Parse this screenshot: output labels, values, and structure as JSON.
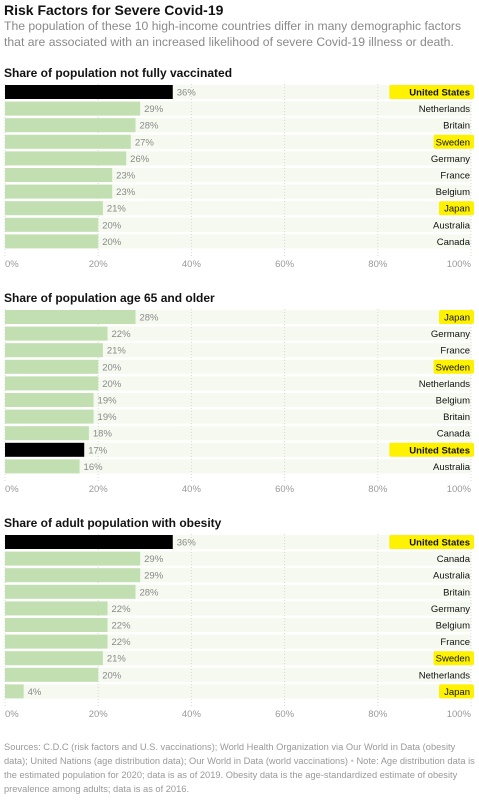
{
  "header": {
    "title": "Risk Factors for Severe Covid-19",
    "subtitle": "The population of these 10 high-income countries differ in many demographic factors that are associated with an increased likelihood of severe Covid-19 illness or death."
  },
  "colors": {
    "bar_default": "#c1dfb1",
    "bar_us": "#000000",
    "track": "#f5f9ef",
    "highlight": "#fff200",
    "text": "#121212",
    "muted": "#8a8a8a"
  },
  "chart_data": [
    {
      "type": "bar",
      "orientation": "horizontal",
      "title": "Share of population not fully vaccinated",
      "categories": [
        "United States",
        "Netherlands",
        "Britain",
        "Sweden",
        "Germany",
        "France",
        "Belgium",
        "Japan",
        "Australia",
        "Canada"
      ],
      "values": [
        36,
        29,
        28,
        27,
        26,
        23,
        23,
        21,
        20,
        20
      ],
      "value_labels": [
        "36%",
        "29%",
        "28%",
        "27%",
        "26%",
        "23%",
        "23%",
        "21%",
        "20%",
        "20%"
      ],
      "highlighted": [
        "United States",
        "Sweden",
        "Japan"
      ],
      "emphasized": "United States",
      "xlim": [
        0,
        100
      ],
      "xticks": [
        "0%",
        "20%",
        "40%",
        "60%",
        "80%",
        "100%"
      ]
    },
    {
      "type": "bar",
      "orientation": "horizontal",
      "title": "Share of population age 65 and older",
      "categories": [
        "Japan",
        "Germany",
        "France",
        "Sweden",
        "Netherlands",
        "Belgium",
        "Britain",
        "Canada",
        "United States",
        "Australia"
      ],
      "values": [
        28,
        22,
        21,
        20,
        20,
        19,
        19,
        18,
        17,
        16
      ],
      "value_labels": [
        "28%",
        "22%",
        "21%",
        "20%",
        "20%",
        "19%",
        "19%",
        "18%",
        "17%",
        "16%"
      ],
      "highlighted": [
        "Japan",
        "Sweden",
        "United States"
      ],
      "emphasized": "United States",
      "xlim": [
        0,
        100
      ],
      "xticks": [
        "0%",
        "20%",
        "40%",
        "60%",
        "80%",
        "100%"
      ]
    },
    {
      "type": "bar",
      "orientation": "horizontal",
      "title": "Share of adult population with obesity",
      "categories": [
        "United States",
        "Canada",
        "Australia",
        "Britain",
        "Germany",
        "Belgium",
        "France",
        "Sweden",
        "Netherlands",
        "Japan"
      ],
      "values": [
        36,
        29,
        29,
        28,
        22,
        22,
        22,
        21,
        20,
        4
      ],
      "value_labels": [
        "36%",
        "29%",
        "29%",
        "28%",
        "22%",
        "22%",
        "22%",
        "21%",
        "20%",
        "4%"
      ],
      "highlighted": [
        "United States",
        "Sweden",
        "Japan"
      ],
      "emphasized": "United States",
      "xlim": [
        0,
        100
      ],
      "xticks": [
        "0%",
        "20%",
        "40%",
        "60%",
        "80%",
        "100%"
      ]
    }
  ],
  "notes": {
    "sources": "Sources: C.D.C (risk factors and U.S. vaccinations); World Health Organization via Our World in Data (obesity data); United Nations (age distribution data); Our World in Data (world vaccinations)",
    "separator": "•",
    "note": "Note: Age distribution data is the estimated population for 2020; data is as of 2019. Obesity data is the age-standardized estimate of obesity prevalence among adults; data is as of 2016."
  }
}
